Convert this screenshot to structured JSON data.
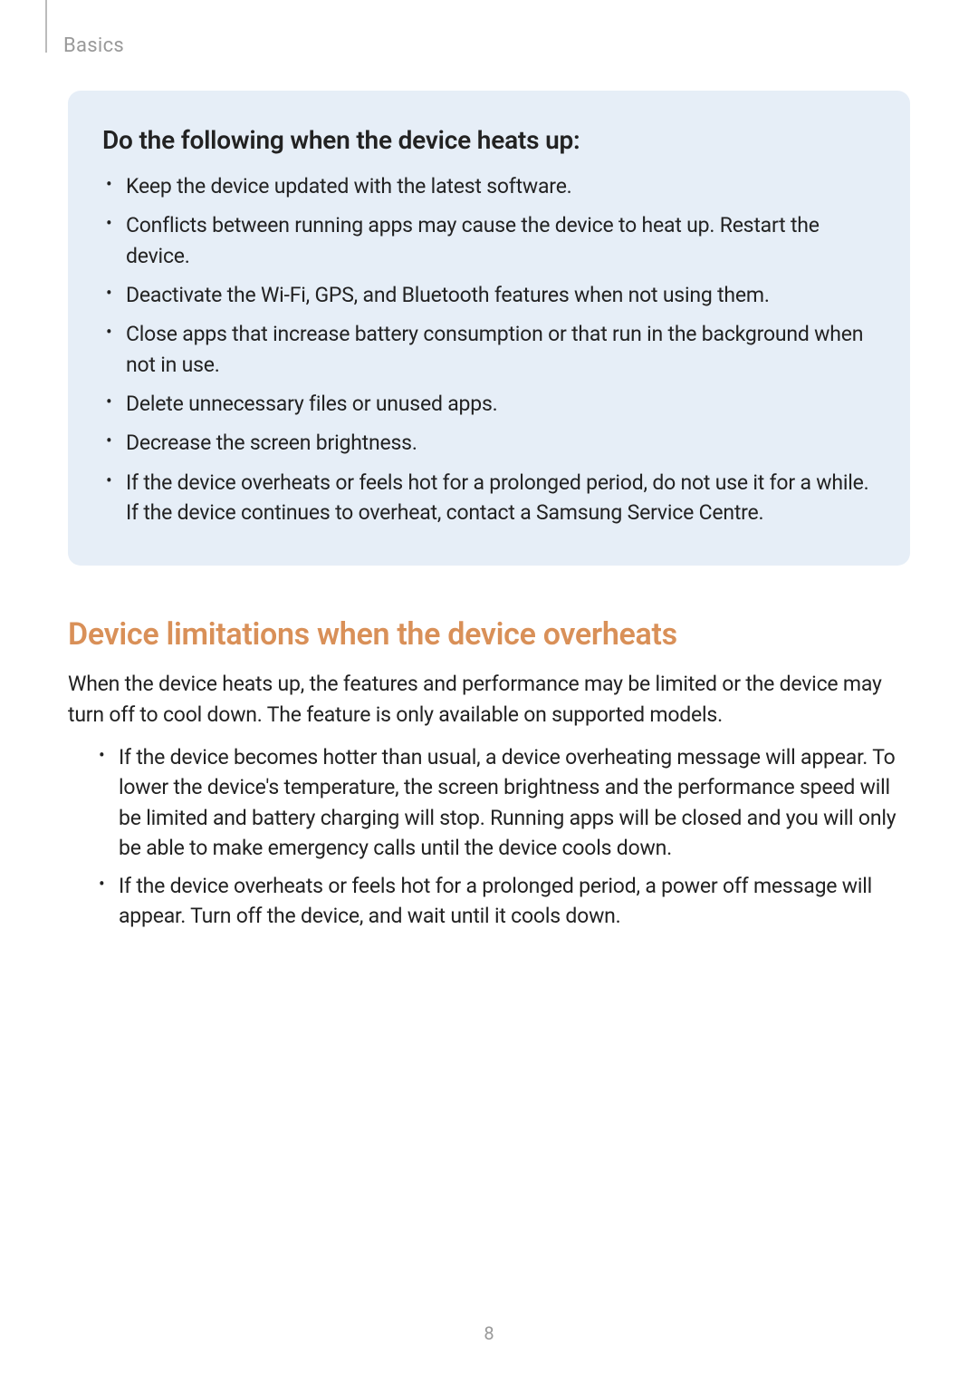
{
  "header": {
    "breadcrumb": "Basics"
  },
  "callout": {
    "heading": "Do the following when the device heats up:",
    "items": [
      "Keep the device updated with the latest software.",
      "Conflicts between running apps may cause the device to heat up. Restart the device.",
      "Deactivate the Wi-Fi, GPS, and Bluetooth features when not using them.",
      "Close apps that increase battery consumption or that run in the background when not in use.",
      "Delete unnecessary files or unused apps.",
      "Decrease the screen brightness.",
      "If the device overheats or feels hot for a prolonged period, do not use it for a while. If the device continues to overheat, contact a Samsung Service Centre."
    ]
  },
  "section": {
    "heading": "Device limitations when the device overheats",
    "intro": "When the device heats up, the features and performance may be limited or the device may turn off to cool down. The feature is only available on supported models.",
    "items": [
      "If the device becomes hotter than usual, a device overheating message will appear. To lower the device's temperature, the screen brightness and the performance speed will be limited and battery charging will stop. Running apps will be closed and you will only be able to make emergency calls until the device cools down.",
      "If the device overheats or feels hot for a prolonged period, a power off message will appear. Turn off the device, and wait until it cools down."
    ]
  },
  "page_number": "8",
  "colors": {
    "callout_bg": "#e6eef7",
    "section_heading": "#d99058",
    "body_text": "#222222",
    "muted_text": "#999999",
    "header_line": "#bbbbbb",
    "page_bg": "#ffffff"
  },
  "typography": {
    "breadcrumb_fontsize": 22,
    "callout_heading_fontsize": 28,
    "section_heading_fontsize": 34,
    "body_fontsize": 23,
    "page_number_fontsize": 20
  }
}
